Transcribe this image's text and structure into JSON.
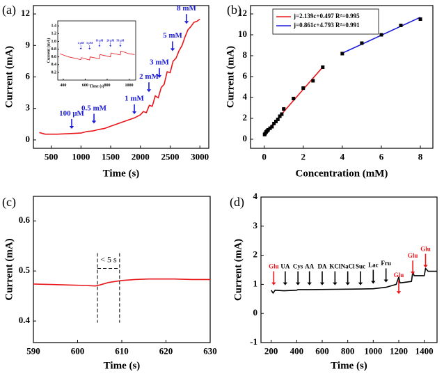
{
  "chart_data": [
    {
      "type": "line",
      "label": "(a)",
      "x_label": "Time (s)",
      "y_label": "Current (mA)",
      "xlim": [
        200,
        3150
      ],
      "ylim": [
        -0.8,
        12.8
      ],
      "xticks": [
        500,
        1000,
        1500,
        2000,
        2500,
        3000
      ],
      "yticks": [
        0,
        3,
        6,
        9,
        12
      ],
      "annotation_color": "#1a1adc",
      "series": [
        {
          "color": "#e8161b",
          "x": [
            300,
            400,
            600,
            800,
            1000,
            1100,
            1200,
            1300,
            1400,
            1500,
            1600,
            1700,
            1800,
            1900,
            2000,
            2050,
            2100,
            2150,
            2200,
            2250,
            2300,
            2350,
            2400,
            2450,
            2500,
            2550,
            2600,
            2650,
            2700,
            2750,
            2800,
            2850,
            2900,
            2950,
            3000
          ],
          "values": [
            0.7,
            0.55,
            0.55,
            0.6,
            0.65,
            0.8,
            0.85,
            1.0,
            1.1,
            1.3,
            1.5,
            1.7,
            1.9,
            2.1,
            2.4,
            2.7,
            2.6,
            3.3,
            3.2,
            4.2,
            4.0,
            5.0,
            5.3,
            6.5,
            6.4,
            7.5,
            7.8,
            8.5,
            9.0,
            9.8,
            10.5,
            10.8,
            11.2,
            11.3,
            11.5
          ]
        }
      ],
      "annotations": [
        {
          "text": "100 μM",
          "x": 844,
          "y": 2.5
        },
        {
          "text": "0.5 mM",
          "x": 1219,
          "y": 3.0
        },
        {
          "text": "1 mM",
          "x": 1898,
          "y": 3.9
        },
        {
          "text": "2 mM",
          "x": 2143,
          "y": 6.0
        },
        {
          "text": "3 mM",
          "x": 2319,
          "y": 7.35
        },
        {
          "text": "5 mM",
          "x": 2541,
          "y": 9.9
        },
        {
          "text": "8 mM",
          "x": 2776,
          "y": 12.5
        }
      ]
    },
    {
      "type": "line",
      "x_label": "Time (s)",
      "y_label": "Current (mA)",
      "xlim": [
        350,
        1060
      ],
      "ylim": [
        0,
        1.53
      ],
      "xticks": [
        400,
        600,
        800,
        1000
      ],
      "yticks": [
        0.2,
        0.4,
        0.6,
        0.8,
        {
          "value": 1,
          "label": "1.0"
        },
        1.2,
        1.4
      ],
      "annotation_color": "#1a1adc",
      "series": [
        {
          "color": "#e8161b",
          "x": [
            370,
            450,
            560,
            565,
            640,
            645,
            730,
            735,
            830,
            835,
            920,
            925,
            1000,
            1050
          ],
          "values": [
            0.68,
            0.6,
            0.53,
            0.58,
            0.52,
            0.6,
            0.55,
            0.66,
            0.6,
            0.7,
            0.65,
            0.75,
            0.68,
            0.66
          ]
        }
      ],
      "annotations": [
        {
          "text": "2 μM",
          "x": 560,
          "y": 0.95
        },
        {
          "text": "5 μM",
          "x": 640,
          "y": 0.95
        },
        {
          "text": "10 μM",
          "x": 730,
          "y": 1.02
        },
        {
          "text": "20 μM",
          "x": 830,
          "y": 1.02
        },
        {
          "text": "50 μM",
          "x": 920,
          "y": 1.02
        }
      ]
    },
    {
      "type": "scatter",
      "label": "(b)",
      "x_label": "Concentration (mM)",
      "y_label": "Current (mA)",
      "xlim": [
        -0.7,
        8.64
      ],
      "ylim": [
        -0.87,
        12.8
      ],
      "xticks": [
        0,
        2,
        4,
        6,
        8
      ],
      "yticks": [
        0,
        2,
        4,
        6,
        8,
        10,
        12
      ],
      "legend": "upper left",
      "series": [
        {
          "name": "j=2.139c+0.497  R²=0.995",
          "type": "line",
          "color": "#e8161b",
          "x": [
            0,
            3
          ],
          "values": [
            0.497,
            6.914
          ]
        },
        {
          "name": "j=0.861c+4.793  R²=0.991",
          "type": "line",
          "color": "#1a1adc",
          "x": [
            4,
            8
          ],
          "values": [
            8.237,
            11.681
          ]
        },
        {
          "type": "scatter",
          "color": "#000000",
          "x": [
            0.02,
            0.05,
            0.1,
            0.15,
            0.2,
            0.3,
            0.4,
            0.5,
            0.6,
            0.7,
            0.8,
            0.9,
            1.0,
            1.5,
            2.0,
            2.5,
            3.0
          ],
          "values": [
            0.45,
            0.55,
            0.7,
            0.8,
            0.9,
            1.05,
            1.2,
            1.5,
            1.7,
            1.9,
            2.2,
            2.4,
            2.9,
            3.9,
            4.9,
            5.6,
            6.9
          ]
        },
        {
          "type": "scatter",
          "color": "#000000",
          "x": [
            4,
            5,
            6,
            7,
            8
          ],
          "values": [
            8.2,
            9.2,
            10.0,
            10.9,
            11.5
          ]
        }
      ]
    },
    {
      "type": "line",
      "label": "(c)",
      "x_label": "Time (s)",
      "y_label": "Current (mA)",
      "xlim": [
        590,
        630
      ],
      "ylim": [
        0.357,
        0.649
      ],
      "xticks": [
        590,
        600,
        610,
        620,
        630
      ],
      "yticks": [
        0.4,
        0.5,
        0.6
      ],
      "annotation_color": "#000000",
      "series": [
        {
          "color": "#e8161b",
          "x": [
            590,
            594,
            598,
            602,
            604,
            605,
            607,
            610,
            613,
            616,
            620,
            622,
            626,
            630
          ],
          "values": [
            0.474,
            0.473,
            0.472,
            0.471,
            0.47,
            0.472,
            0.477,
            0.481,
            0.483,
            0.484,
            0.484,
            0.484,
            0.483,
            0.483
          ]
        }
      ],
      "annotations": [
        {
          "text": "< 5 s",
          "span": [
            604.5,
            609.5
          ],
          "y": 0.505
        }
      ]
    },
    {
      "type": "line",
      "label": "(d)",
      "x_label": "Time (s)",
      "y_label": "Current (mA)",
      "xlim": [
        120,
        1500
      ],
      "ylim": [
        -1,
        4
      ],
      "xticks": [
        200,
        400,
        600,
        800,
        1000,
        1200,
        1400
      ],
      "yticks": [
        -1,
        0,
        1,
        2,
        3,
        4
      ],
      "annotation_color": "#000000",
      "series": [
        {
          "color": "#000000",
          "x": [
            200,
            215,
            230,
            300,
            400,
            410,
            500,
            700,
            900,
            1000,
            1100,
            1180,
            1200,
            1210,
            1300,
            1310,
            1320,
            1400,
            1410,
            1430,
            1500
          ],
          "values": [
            0.8,
            0.7,
            0.8,
            0.78,
            0.8,
            0.82,
            0.82,
            0.83,
            0.84,
            0.85,
            0.9,
            1.0,
            1.25,
            1.05,
            1.1,
            1.45,
            1.3,
            1.3,
            1.55,
            1.45,
            1.45
          ]
        }
      ],
      "annotations": [
        {
          "text": "Glu",
          "x": 220,
          "y": 1.6,
          "color": "#e8161b"
        },
        {
          "text": "UA",
          "x": 310,
          "y": 1.6
        },
        {
          "text": "Cys",
          "x": 410,
          "y": 1.6
        },
        {
          "text": "AA",
          "x": 500,
          "y": 1.6
        },
        {
          "text": "DA",
          "x": 600,
          "y": 1.6
        },
        {
          "text": "KCl",
          "x": 700,
          "y": 1.6
        },
        {
          "text": "NaCl",
          "x": 800,
          "y": 1.6
        },
        {
          "text": "Suc",
          "x": 900,
          "y": 1.6
        },
        {
          "text": "Lac",
          "x": 1000,
          "y": 1.65
        },
        {
          "text": "Fru",
          "x": 1100,
          "y": 1.7
        },
        {
          "text": "Glu",
          "x": 1200,
          "y": 1.3,
          "color": "#e8161b"
        },
        {
          "text": "Glu",
          "x": 1310,
          "y": 1.97,
          "color": "#e8161b"
        },
        {
          "text": "Glu",
          "x": 1410,
          "y": 2.2,
          "color": "#e8161b"
        }
      ]
    }
  ]
}
